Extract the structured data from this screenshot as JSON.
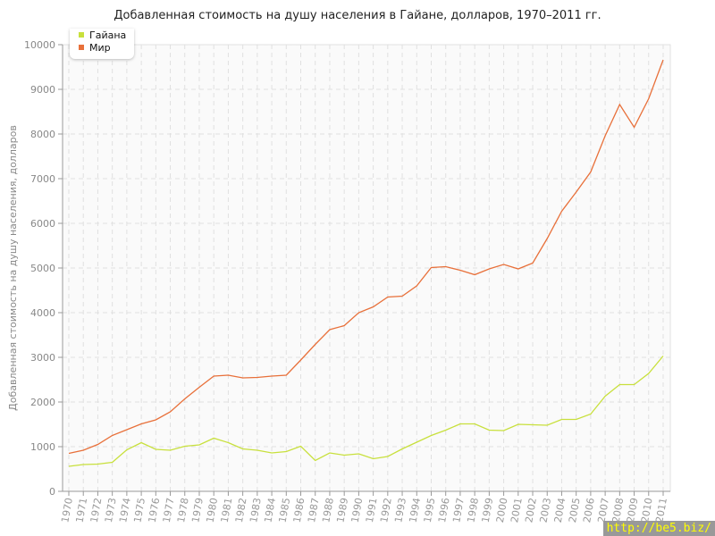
{
  "chart_data": {
    "type": "line",
    "title": "Добавленная стоимость на душу населения в Гайане, долларов, 1970–2011 гг.",
    "xlabel": "",
    "ylabel": "Добавленная стоимость на душу населения, долларов",
    "ylim": [
      0,
      10000
    ],
    "yticks": [
      0,
      1000,
      2000,
      3000,
      4000,
      5000,
      6000,
      7000,
      8000,
      9000,
      10000
    ],
    "grid": true,
    "legend_position": "top-left",
    "x": [
      1970,
      1971,
      1972,
      1973,
      1974,
      1975,
      1976,
      1977,
      1978,
      1979,
      1980,
      1981,
      1982,
      1983,
      1984,
      1985,
      1986,
      1987,
      1988,
      1989,
      1990,
      1991,
      1992,
      1993,
      1994,
      1995,
      1996,
      1997,
      1998,
      1999,
      2000,
      2001,
      2002,
      2003,
      2004,
      2005,
      2006,
      2007,
      2008,
      2009,
      2010,
      2011
    ],
    "series": [
      {
        "name": "Гайана",
        "color": "#c8e03c",
        "values": [
          560,
          600,
          610,
          650,
          930,
          1090,
          940,
          920,
          1010,
          1040,
          1190,
          1090,
          950,
          920,
          860,
          890,
          1010,
          690,
          860,
          810,
          840,
          730,
          780,
          950,
          1100,
          1250,
          1370,
          1510,
          1510,
          1370,
          1360,
          1500,
          1490,
          1480,
          1610,
          1610,
          1730,
          2130,
          2390,
          2390,
          2640,
          3030
        ]
      },
      {
        "name": "Мир",
        "color": "#e8703a",
        "values": [
          850,
          920,
          1050,
          1250,
          1380,
          1510,
          1600,
          1780,
          2070,
          2330,
          2580,
          2600,
          2540,
          2550,
          2580,
          2600,
          2940,
          3290,
          3620,
          3710,
          4000,
          4130,
          4350,
          4370,
          4600,
          5010,
          5030,
          4950,
          4850,
          4980,
          5080,
          4980,
          5110,
          5660,
          6270,
          6700,
          7150,
          7960,
          8660,
          8150,
          8790,
          9660
        ]
      }
    ]
  },
  "watermark": "http://be5.biz/"
}
